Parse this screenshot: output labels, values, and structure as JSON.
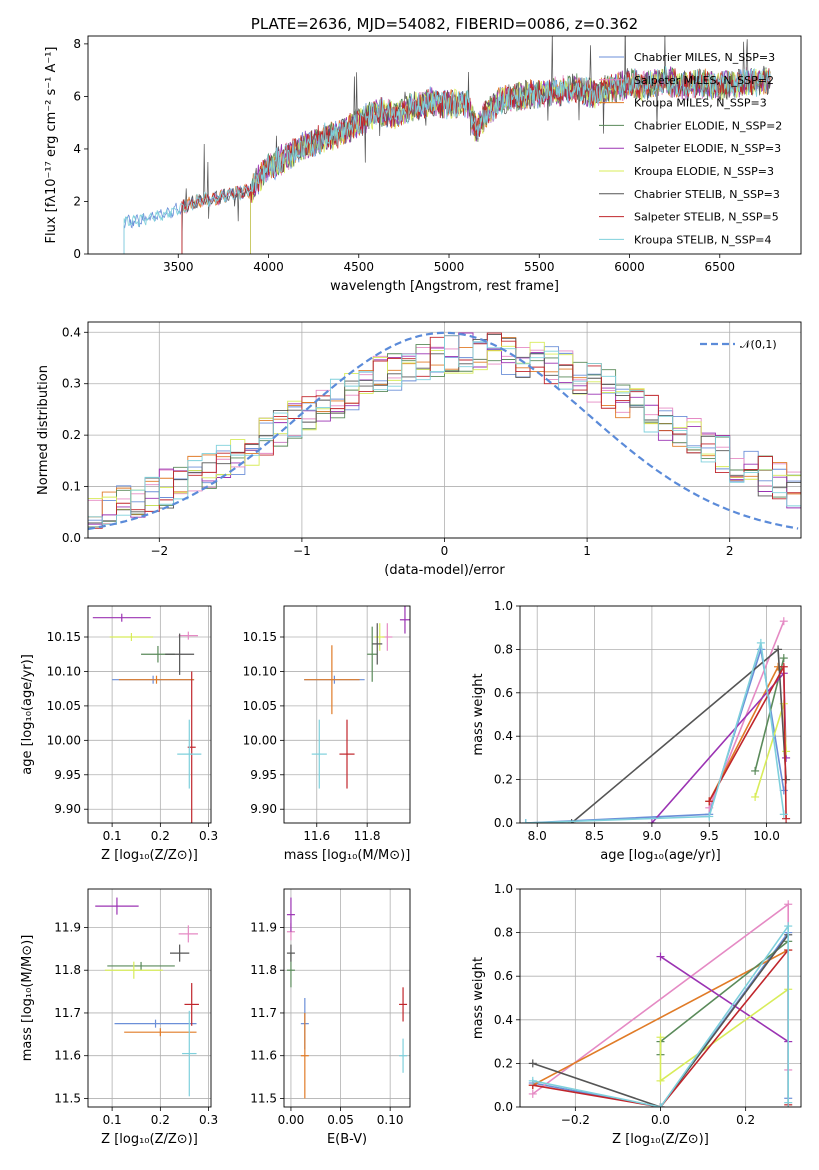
{
  "chart_data": [
    {
      "id": "spectrum",
      "type": "line",
      "title": "PLATE=2636, MJD=54082, FIBERID=0086, z=0.362",
      "xlabel": "wavelength [Angstrom, rest frame]",
      "ylabel": "Flux [fλ10⁻¹⁷ erg cm⁻² s⁻¹ A⁻¹]",
      "xlim": [
        3000,
        6950
      ],
      "ylim": [
        0,
        8.3
      ],
      "xticks": [
        3500,
        4000,
        4500,
        5000,
        5500,
        6000,
        6500
      ],
      "yticks": [
        0,
        2,
        4,
        6,
        8
      ],
      "grid": false,
      "legend_position": "top-right",
      "x": [
        3200,
        3300,
        3400,
        3500,
        3600,
        3700,
        3800,
        3900,
        3950,
        4000,
        4100,
        4200,
        4300,
        4400,
        4500,
        4600,
        4700,
        4800,
        4900,
        5000,
        5100,
        5150,
        5200,
        5300,
        5400,
        5500,
        5600,
        5700,
        5800,
        5900,
        6000,
        6100,
        6200,
        6300,
        6400,
        6500,
        6600,
        6750
      ],
      "y": [
        1.2,
        1.3,
        1.5,
        1.7,
        2.0,
        2.1,
        2.3,
        2.4,
        2.9,
        3.3,
        3.7,
        4.1,
        4.4,
        4.6,
        5.0,
        5.4,
        5.3,
        5.6,
        5.8,
        5.7,
        5.8,
        4.7,
        5.3,
        5.9,
        6.0,
        6.1,
        6.2,
        6.3,
        6.1,
        6.3,
        6.5,
        6.4,
        6.6,
        6.4,
        6.5,
        6.4,
        6.5,
        6.6
      ],
      "series": [
        {
          "name": "Chabrier MILES, N_SSP=3",
          "color": "#6b8fd8",
          "start": 3200
        },
        {
          "name": "Salpeter MILES, N_SSP=2",
          "color": "#e58ac4",
          "start": 3520
        },
        {
          "name": "Kroupa MILES, N_SSP=3",
          "color": "#e07b27",
          "start": 3520
        },
        {
          "name": "Chabrier ELODIE, N_SSP=2",
          "color": "#5a8a5a",
          "start": 3900
        },
        {
          "name": "Salpeter ELODIE, N_SSP=3",
          "color": "#9b33b3",
          "start": 3900
        },
        {
          "name": "Kroupa ELODIE, N_SSP=3",
          "color": "#d8ec5a",
          "start": 3900
        },
        {
          "name": "Chabrier STELIB, N_SSP=3",
          "color": "#555555",
          "start": 3520
        },
        {
          "name": "Salpeter STELIB, N_SSP=5",
          "color": "#c0262c",
          "start": 3520
        },
        {
          "name": "Kroupa STELIB, N_SSP=4",
          "color": "#7fd0dc",
          "start": 3200
        }
      ]
    },
    {
      "id": "residuals",
      "type": "line",
      "xlabel": "(data-model)/error",
      "ylabel": "Normed distribution",
      "xlim": [
        -2.5,
        2.5
      ],
      "ylim": [
        0,
        0.42
      ],
      "xticks": [
        -2,
        -1,
        0,
        1,
        2
      ],
      "yticks": [
        0.0,
        0.1,
        0.2,
        0.3,
        0.4
      ],
      "grid": true,
      "legend_position": "top-right",
      "normal_label": "𝒩(0,1)",
      "normal_color": "#5b8bd9",
      "bin_width": 0.1,
      "series_colors": [
        "#6b8fd8",
        "#e58ac4",
        "#e07b27",
        "#5a8a5a",
        "#9b33b3",
        "#d8ec5a",
        "#555555",
        "#c0262c",
        "#7fd0dc"
      ]
    },
    {
      "id": "age-vs-Z",
      "type": "scatter",
      "xlabel": "Z [log₁₀(Z/Z⊙)]",
      "ylabel": "age  [log₁₀(age/yr)]",
      "xlim": [
        0.05,
        0.305
      ],
      "ylim": [
        9.88,
        10.195
      ],
      "xticks": [
        0.1,
        0.2,
        0.3
      ],
      "yticks": [
        9.9,
        9.95,
        10.0,
        10.05,
        10.1,
        10.15
      ],
      "grid": true,
      "points": [
        {
          "x": 0.185,
          "y": 10.088,
          "xerr": 0.085,
          "yerr": 0.0,
          "color": "#6b8fd8"
        },
        {
          "x": 0.192,
          "y": 10.088,
          "xerr": 0.078,
          "yerr": 0.0,
          "color": "#e07b27"
        },
        {
          "x": 0.258,
          "y": 10.152,
          "xerr": 0.02,
          "yerr": 0.0,
          "color": "#e58ac4"
        },
        {
          "x": 0.195,
          "y": 10.125,
          "xerr": 0.035,
          "yerr": 0.012,
          "color": "#5a8a5a"
        },
        {
          "x": 0.12,
          "y": 10.178,
          "xerr": 0.06,
          "yerr": 0.0,
          "color": "#9b33b3"
        },
        {
          "x": 0.14,
          "y": 10.15,
          "xerr": 0.045,
          "yerr": 0.0,
          "color": "#d8ec5a"
        },
        {
          "x": 0.24,
          "y": 10.125,
          "xerr": 0.03,
          "yerr": 0.03,
          "color": "#555555"
        },
        {
          "x": 0.265,
          "y": 9.99,
          "xerr": 0.005,
          "yerr": 0.11,
          "color": "#c0262c"
        },
        {
          "x": 0.26,
          "y": 9.98,
          "xerr": 0.025,
          "yerr": 0.05,
          "color": "#7fd0dc"
        }
      ]
    },
    {
      "id": "age-vs-mass",
      "type": "scatter",
      "xlabel": "mass [log₁₀(M/M⊙)]",
      "ylabel": "",
      "xlim": [
        11.47,
        11.97
      ],
      "ylim": [
        9.88,
        10.195
      ],
      "xticks": [
        11.6,
        11.8
      ],
      "yticks": [
        9.9,
        9.95,
        10.0,
        10.05,
        10.1,
        10.15
      ],
      "grid": true,
      "points": [
        {
          "x": 11.67,
          "y": 10.088,
          "xerr": 0.12,
          "yerr": 0.0,
          "color": "#6b8fd8"
        },
        {
          "x": 11.66,
          "y": 10.088,
          "xerr": 0.11,
          "yerr": 0.05,
          "color": "#e07b27"
        },
        {
          "x": 11.88,
          "y": 10.15,
          "xerr": 0.02,
          "yerr": 0.02,
          "color": "#e58ac4"
        },
        {
          "x": 11.82,
          "y": 10.125,
          "xerr": 0.02,
          "yerr": 0.04,
          "color": "#5a8a5a"
        },
        {
          "x": 11.95,
          "y": 10.175,
          "xerr": 0.02,
          "yerr": 0.02,
          "color": "#9b33b3"
        },
        {
          "x": 11.85,
          "y": 10.15,
          "xerr": 0.02,
          "yerr": 0.02,
          "color": "#d8ec5a"
        },
        {
          "x": 11.84,
          "y": 10.14,
          "xerr": 0.02,
          "yerr": 0.03,
          "color": "#555555"
        },
        {
          "x": 11.72,
          "y": 9.98,
          "xerr": 0.03,
          "yerr": 0.05,
          "color": "#c0262c"
        },
        {
          "x": 11.61,
          "y": 9.98,
          "xerr": 0.03,
          "yerr": 0.05,
          "color": "#7fd0dc"
        }
      ]
    },
    {
      "id": "weight-vs-age",
      "type": "line",
      "xlabel": "age  [log₁₀(age/yr)]",
      "ylabel": "mass weight",
      "xlim": [
        7.85,
        10.3
      ],
      "ylim": [
        0,
        1.0
      ],
      "xticks": [
        8.0,
        8.5,
        9.0,
        9.5,
        10.0
      ],
      "yticks": [
        0.0,
        0.2,
        0.4,
        0.6,
        0.8,
        1.0
      ],
      "grid": true,
      "series": [
        {
          "color": "#6b8fd8",
          "x": [
            7.9,
            9.5,
            9.95,
            10.15
          ],
          "y": [
            0.0,
            0.04,
            0.8,
            0.15
          ]
        },
        {
          "color": "#e58ac4",
          "x": [
            9.5,
            10.15
          ],
          "y": [
            0.07,
            0.93
          ]
        },
        {
          "color": "#e07b27",
          "x": [
            9.5,
            10.1
          ],
          "y": [
            0.1,
            0.72
          ]
        },
        {
          "color": "#5a8a5a",
          "x": [
            9.9,
            10.15
          ],
          "y": [
            0.24,
            0.76
          ]
        },
        {
          "color": "#9b33b3",
          "x": [
            9.0,
            10.15,
            10.17
          ],
          "y": [
            0.0,
            0.69,
            0.3
          ]
        },
        {
          "color": "#d8ec5a",
          "x": [
            9.9,
            10.15,
            10.17
          ],
          "y": [
            0.12,
            0.55,
            0.33
          ]
        },
        {
          "color": "#555555",
          "x": [
            8.3,
            10.1,
            10.17
          ],
          "y": [
            0.0,
            0.8,
            0.2
          ]
        },
        {
          "color": "#c0262c",
          "x": [
            9.5,
            10.15,
            10.17
          ],
          "y": [
            0.1,
            0.72,
            0.02
          ]
        },
        {
          "color": "#7fd0dc",
          "x": [
            7.9,
            9.5,
            9.95,
            10.15
          ],
          "y": [
            0.0,
            0.03,
            0.83,
            0.04
          ]
        }
      ]
    },
    {
      "id": "mass-vs-Z",
      "type": "scatter",
      "xlabel": "Z [log₁₀(Z/Z⊙)]",
      "ylabel": "mass [log₁₀(M/M⊙)]",
      "xlim": [
        0.05,
        0.305
      ],
      "ylim": [
        11.48,
        11.99
      ],
      "xticks": [
        0.1,
        0.2,
        0.3
      ],
      "yticks": [
        11.5,
        11.6,
        11.7,
        11.8,
        11.9
      ],
      "grid": true,
      "points": [
        {
          "x": 0.19,
          "y": 11.675,
          "xerr": 0.085,
          "yerr": 0.0,
          "color": "#6b8fd8"
        },
        {
          "x": 0.2,
          "y": 11.655,
          "xerr": 0.075,
          "yerr": 0.0,
          "color": "#e07b27"
        },
        {
          "x": 0.258,
          "y": 11.885,
          "xerr": 0.02,
          "yerr": 0.02,
          "color": "#e58ac4"
        },
        {
          "x": 0.16,
          "y": 11.81,
          "xerr": 0.07,
          "yerr": 0.0,
          "color": "#5a8a5a"
        },
        {
          "x": 0.11,
          "y": 11.95,
          "xerr": 0.045,
          "yerr": 0.02,
          "color": "#9b33b3"
        },
        {
          "x": 0.145,
          "y": 11.8,
          "xerr": 0.06,
          "yerr": 0.02,
          "color": "#d8ec5a"
        },
        {
          "x": 0.24,
          "y": 11.84,
          "xerr": 0.02,
          "yerr": 0.02,
          "color": "#555555"
        },
        {
          "x": 0.265,
          "y": 11.72,
          "xerr": 0.015,
          "yerr": 0.05,
          "color": "#c0262c"
        },
        {
          "x": 0.26,
          "y": 11.605,
          "xerr": 0.015,
          "yerr": 0.1,
          "color": "#7fd0dc"
        }
      ]
    },
    {
      "id": "mass-vs-EBV",
      "type": "scatter",
      "xlabel": "E(B-V)",
      "ylabel": "",
      "xlim": [
        -0.007,
        0.12
      ],
      "ylim": [
        11.48,
        11.99
      ],
      "xticks": [
        0.0,
        0.05,
        0.1
      ],
      "yticks": [
        11.5,
        11.6,
        11.7,
        11.8,
        11.9
      ],
      "grid": true,
      "points": [
        {
          "x": 0.014,
          "y": 11.675,
          "yerr": 0.06,
          "color": "#6b8fd8"
        },
        {
          "x": 0.014,
          "y": 11.6,
          "yerr": 0.1,
          "color": "#e07b27"
        },
        {
          "x": 0.0,
          "y": 11.89,
          "yerr": 0.02,
          "color": "#e58ac4"
        },
        {
          "x": 0.0,
          "y": 11.8,
          "yerr": 0.04,
          "color": "#5a8a5a"
        },
        {
          "x": 0.0,
          "y": 11.93,
          "yerr": 0.04,
          "color": "#9b33b3"
        },
        {
          "x": 0.0,
          "y": 11.84,
          "yerr": 0.02,
          "color": "#555555"
        },
        {
          "x": 0.113,
          "y": 11.72,
          "yerr": 0.04,
          "color": "#c0262c"
        },
        {
          "x": 0.113,
          "y": 11.6,
          "yerr": 0.04,
          "color": "#7fd0dc"
        }
      ]
    },
    {
      "id": "weight-vs-Z",
      "type": "line",
      "xlabel": "Z [log₁₀(Z/Z⊙)]",
      "ylabel": "mass weight",
      "xlim": [
        -0.33,
        0.33
      ],
      "ylim": [
        0,
        1.0
      ],
      "xticks": [
        -0.2,
        0.0,
        0.2
      ],
      "yticks": [
        0.0,
        0.2,
        0.4,
        0.6,
        0.8,
        1.0
      ],
      "grid": true,
      "series": [
        {
          "color": "#6b8fd8",
          "x": [
            -0.3,
            0.0,
            0.3,
            0.3
          ],
          "y": [
            0.11,
            0.0,
            0.8,
            0.04
          ]
        },
        {
          "color": "#e58ac4",
          "x": [
            -0.3,
            0.3,
            0.3
          ],
          "y": [
            0.06,
            0.93,
            0.17
          ]
        },
        {
          "color": "#e07b27",
          "x": [
            -0.3,
            0.3
          ],
          "y": [
            0.1,
            0.72
          ]
        },
        {
          "color": "#5a8a5a",
          "x": [
            0.0,
            0.0,
            0.3
          ],
          "y": [
            0.24,
            0.3,
            0.76
          ]
        },
        {
          "color": "#9b33b3",
          "x": [
            0.0,
            0.3
          ],
          "y": [
            0.69,
            0.3
          ]
        },
        {
          "color": "#d8ec5a",
          "x": [
            0.0,
            0.0,
            0.3
          ],
          "y": [
            0.32,
            0.12,
            0.54
          ]
        },
        {
          "color": "#555555",
          "x": [
            -0.3,
            0.0,
            0.3
          ],
          "y": [
            0.2,
            0.0,
            0.79
          ]
        },
        {
          "color": "#c0262c",
          "x": [
            -0.3,
            0.0,
            0.3,
            0.3
          ],
          "y": [
            0.1,
            0.0,
            0.72,
            0.01
          ]
        },
        {
          "color": "#7fd0dc",
          "x": [
            -0.3,
            0.0,
            0.3,
            0.3
          ],
          "y": [
            0.12,
            0.0,
            0.83,
            0.02
          ]
        }
      ]
    }
  ]
}
